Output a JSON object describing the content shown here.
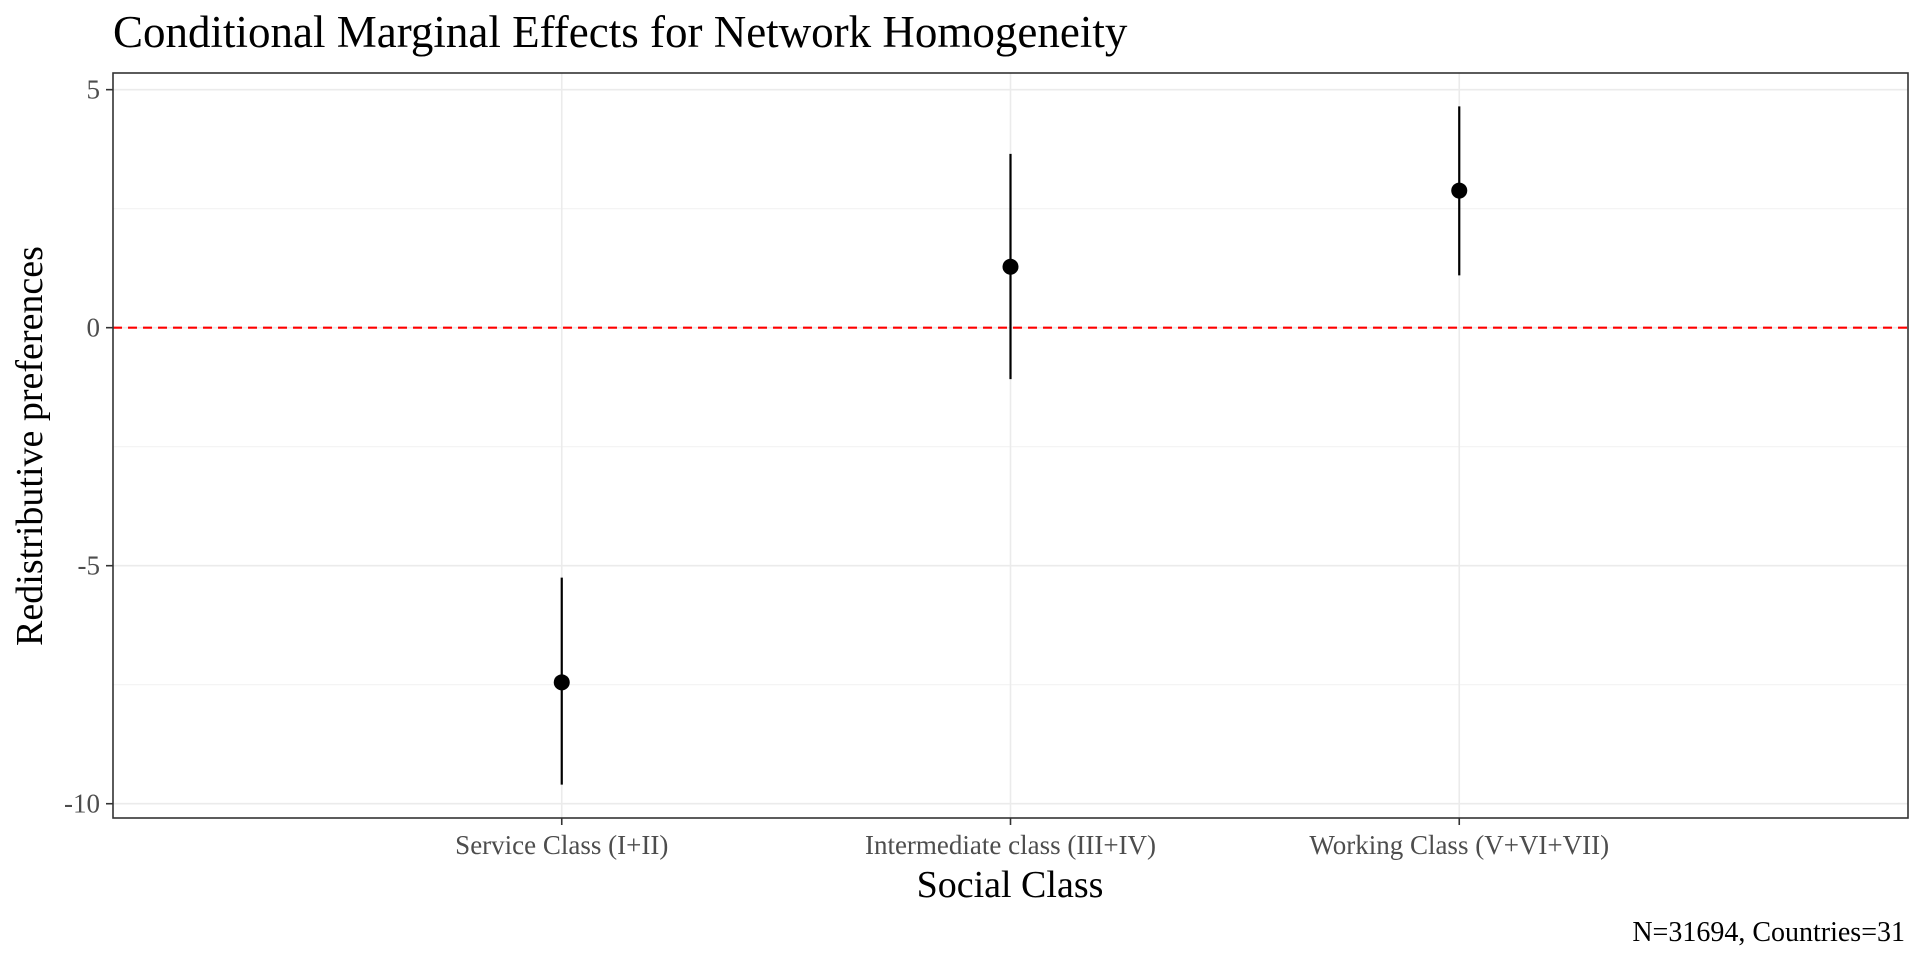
{
  "chart_data": {
    "type": "scatter",
    "title": "Conditional Marginal Effects for Network Homogeneity",
    "xlabel": "Social Class",
    "ylabel": "Redistributive preferences",
    "caption": "N=31694, Countries=31",
    "categories": [
      "Service Class (I+II)",
      "Intermediate class (III+IV)",
      "Working Class (V+VI+VII)"
    ],
    "estimates": [
      -7.45,
      1.28,
      2.88
    ],
    "ci_lower": [
      -9.6,
      -1.08,
      1.1
    ],
    "ci_upper": [
      -5.25,
      3.65,
      4.65
    ],
    "ylim": [
      -10.3,
      5.35
    ],
    "yticks": [
      -10,
      -5,
      0,
      5
    ],
    "ytick_labels": [
      "-10",
      "-5",
      "0",
      "5"
    ],
    "reference_line": {
      "y": 0,
      "style": "dashed",
      "color": "#ff0000"
    },
    "point_color": "#000000",
    "grid": true,
    "legend": "none"
  }
}
